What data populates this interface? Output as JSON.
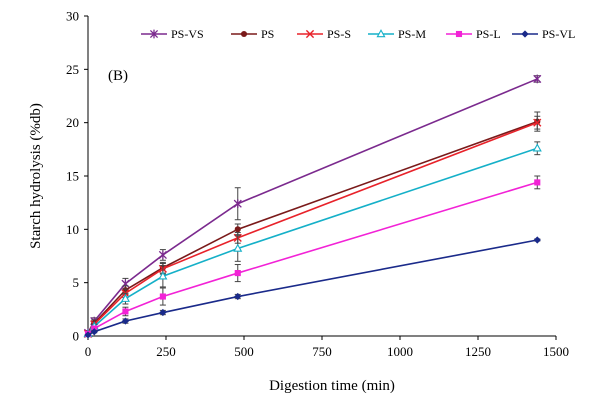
{
  "chart_data": {
    "type": "line",
    "panel_label": "(B)",
    "xlabel": "Digestion time (min)",
    "ylabel": "Starch hydrolysis (%db)",
    "xlim": [
      0,
      1500
    ],
    "ylim": [
      0,
      30
    ],
    "xticks": [
      0,
      250,
      500,
      750,
      1000,
      1250,
      1500
    ],
    "yticks": [
      0,
      5,
      10,
      15,
      20,
      25,
      30
    ],
    "grid": false,
    "legend_position": "top",
    "x": [
      0,
      20,
      120,
      240,
      480,
      1440
    ],
    "series": [
      {
        "name": "PS-VS",
        "color": "#7b2a8e",
        "marker": "star",
        "values": [
          0.3,
          1.4,
          4.9,
          7.6,
          12.4,
          24.1
        ],
        "errors": [
          0.1,
          0.3,
          0.5,
          0.5,
          1.5,
          0.3
        ]
      },
      {
        "name": "PS",
        "color": "#7a1a1a",
        "marker": "circle",
        "values": [
          0.3,
          1.2,
          4.3,
          6.4,
          10.0,
          20.1
        ],
        "errors": [
          0.1,
          0.3,
          0.4,
          0.5,
          0.5,
          0.9
        ]
      },
      {
        "name": "PS-S",
        "color": "#e8222a",
        "marker": "x",
        "values": [
          0.2,
          1.1,
          4.0,
          6.3,
          9.2,
          20.0
        ],
        "errors": [
          0.1,
          0.2,
          0.4,
          0.5,
          0.5,
          0.6
        ]
      },
      {
        "name": "PS-M",
        "color": "#15b0c8",
        "marker": "triangle",
        "values": [
          0.2,
          0.9,
          3.5,
          5.6,
          8.2,
          17.6
        ],
        "errors": [
          0.1,
          0.2,
          0.5,
          1.0,
          1.2,
          0.6
        ]
      },
      {
        "name": "PS-L",
        "color": "#f222d6",
        "marker": "square",
        "values": [
          0.2,
          0.7,
          2.3,
          3.7,
          5.9,
          14.4
        ],
        "errors": [
          0.1,
          0.2,
          0.4,
          0.8,
          0.8,
          0.6
        ]
      },
      {
        "name": "PS-VL",
        "color": "#1a2a8a",
        "marker": "diamond",
        "values": [
          0.1,
          0.4,
          1.4,
          2.2,
          3.7,
          9.0
        ],
        "errors": [
          0.0,
          0.1,
          0.2,
          0.2,
          0.2,
          0.1
        ]
      }
    ]
  }
}
